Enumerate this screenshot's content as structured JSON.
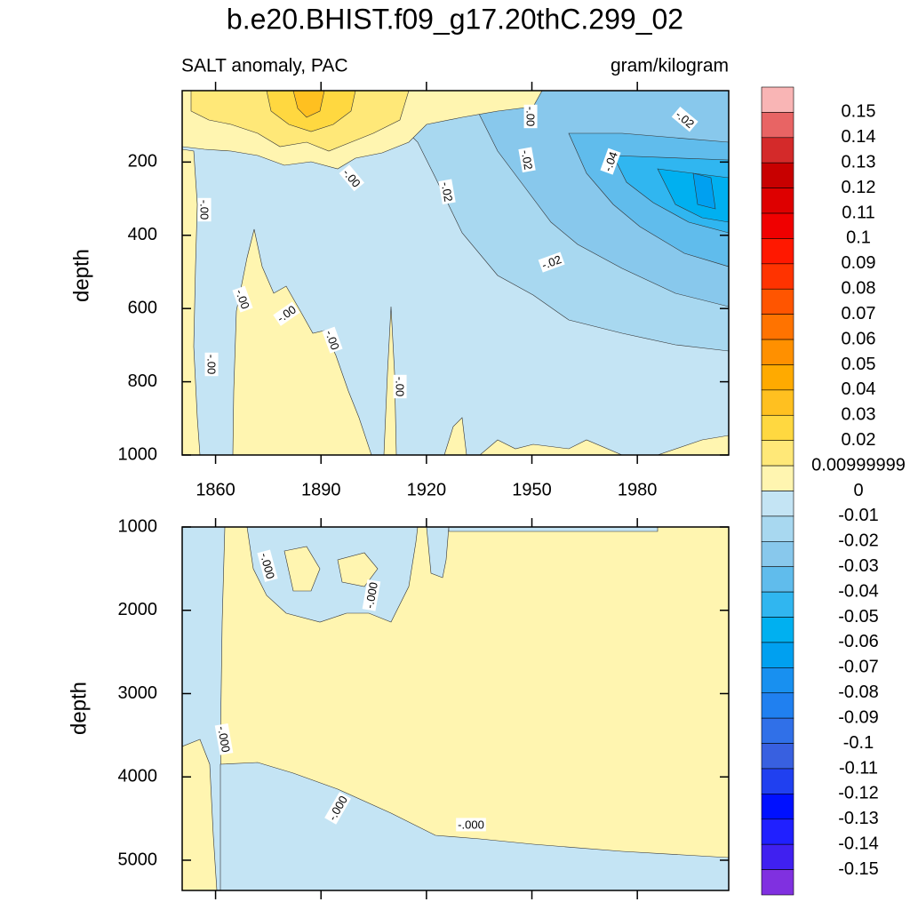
{
  "chart_data": [
    {
      "type": "contour",
      "title": "b.e20.BHIST.f09_g17.20thC.299_02",
      "subtitle_left": "SALT anomaly, PAC",
      "subtitle_right": "gram/kilogram",
      "ylabel": "depth",
      "xlim": [
        1850.5,
        2006
      ],
      "xticks": [
        1860,
        1890,
        1920,
        1950,
        1980
      ],
      "ylim": [
        5,
        1000
      ],
      "yticks": [
        200,
        400,
        600,
        800,
        1000
      ],
      "y_reversed": true,
      "contour_labels": [
        "-.00",
        "-.00",
        "-.00",
        "-.00",
        "-.00",
        "-.00",
        "-.00",
        "-.00",
        "-.02",
        "-.02",
        "-.04",
        "-.02",
        "-.02"
      ],
      "colorbar": {
        "levels": [
          0.15,
          0.14,
          0.13,
          0.12,
          0.11,
          0.1,
          0.09,
          0.08,
          0.07,
          0.06,
          0.05,
          0.04,
          0.03,
          0.02,
          0.00999999,
          0,
          -0.01,
          -0.02,
          -0.03,
          -0.04,
          -0.05,
          -0.06,
          -0.07,
          -0.08,
          -0.09,
          -0.1,
          -0.11,
          -0.12,
          -0.13,
          -0.14,
          -0.15
        ],
        "colors": [
          "#f9b5b5",
          "#e86464",
          "#d42a2a",
          "#c80000",
          "#de0000",
          "#f00000",
          "#ff1800",
          "#ff3300",
          "#ff5500",
          "#ff7300",
          "#ff9000",
          "#ffaa00",
          "#ffc020",
          "#ffd840",
          "#ffe878",
          "#fff5b0",
          "#c4e4f4",
          "#a8d8f0",
          "#88c8ec",
          "#60bcec",
          "#30b6f0",
          "#00b0f0",
          "#00a0f0",
          "#1890f0",
          "#2080f0",
          "#3070e8",
          "#3860e0",
          "#2040f0",
          "#0010ff",
          "#2020ff",
          "#4020f0",
          "#8030e0"
        ]
      }
    },
    {
      "type": "contour",
      "ylabel": "depth",
      "xlim": [
        1850.5,
        2006
      ],
      "xticks": [
        1860,
        1890,
        1920,
        1950,
        1980
      ],
      "ylim": [
        1000,
        5363
      ],
      "yticks": [
        1000,
        2000,
        3000,
        4000,
        5000
      ],
      "y_reversed": true,
      "contour_labels": [
        "-.000",
        "-.000",
        "-.000",
        "-.000",
        "-.000"
      ]
    }
  ]
}
